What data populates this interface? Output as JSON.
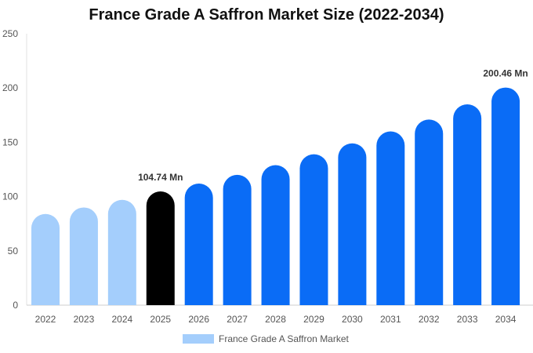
{
  "chart_data": {
    "type": "bar",
    "title": "France Grade A Saffron Market Size (2022-2034)",
    "categories": [
      "2022",
      "2023",
      "2024",
      "2025",
      "2026",
      "2027",
      "2028",
      "2029",
      "2030",
      "2031",
      "2032",
      "2033",
      "2034"
    ],
    "series": [
      {
        "name": "France Grade A Saffron Market",
        "values": [
          84,
          90,
          97,
          104.74,
          112,
          120,
          129,
          139,
          149,
          160,
          171,
          185,
          200.46
        ]
      }
    ],
    "data_labels": [
      {
        "category": "2025",
        "text": "104.74 Mn"
      },
      {
        "category": "2034",
        "text": "200.46 Mn"
      }
    ],
    "ylim": [
      0,
      250
    ],
    "yticks": [
      0,
      50,
      100,
      150,
      200,
      250
    ],
    "xlabel": "",
    "ylabel": "",
    "grid": false,
    "legend_position": "bottom",
    "colors": {
      "historical": "#a4cefc",
      "base_year": "#000000",
      "forecast": "#0a6cf6"
    },
    "historical_count": 3,
    "base_year_index": 3
  }
}
